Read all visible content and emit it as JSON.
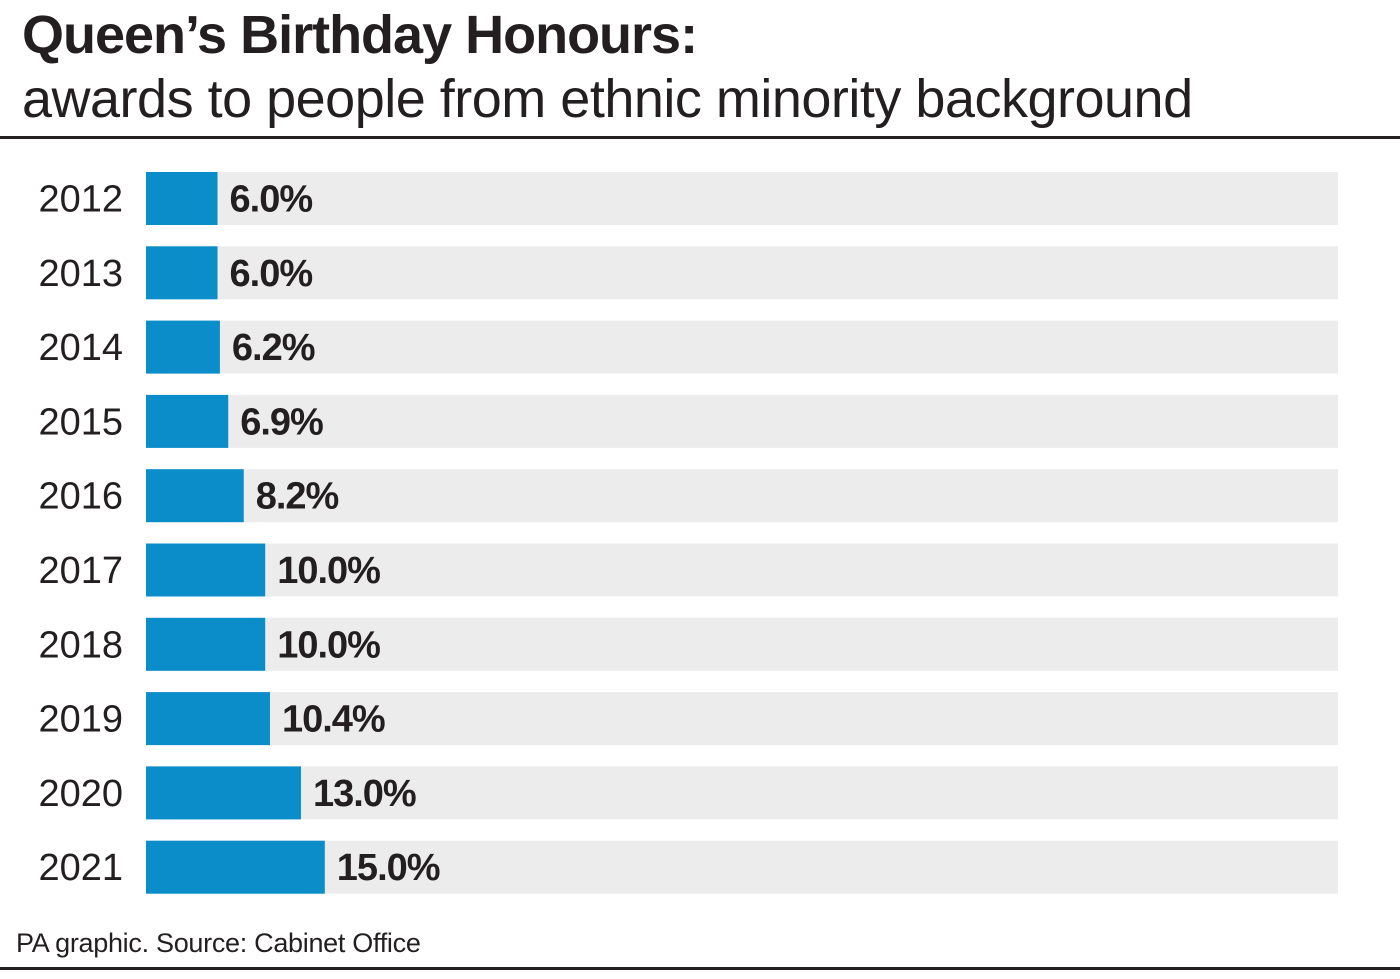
{
  "header": {
    "title": "Queen’s Birthday Honours:",
    "subtitle": "awards to people from ethnic minority background"
  },
  "footer": {
    "source": "PA graphic. Source: Cabinet Office"
  },
  "colors": {
    "bar": "#0a8dc9",
    "track": "#ececec",
    "text": "#231f20"
  },
  "chart_data": {
    "type": "bar",
    "orientation": "horizontal",
    "title": "Queen’s Birthday Honours:",
    "subtitle": "awards to people from ethnic minority background",
    "categories": [
      "2012",
      "2013",
      "2014",
      "2015",
      "2016",
      "2017",
      "2018",
      "2019",
      "2020",
      "2021"
    ],
    "values": [
      6.0,
      6.0,
      6.2,
      6.9,
      8.2,
      10.0,
      10.0,
      10.4,
      13.0,
      15.0
    ],
    "value_labels": [
      "6.0%",
      "6.0%",
      "6.2%",
      "6.9%",
      "8.2%",
      "10.0%",
      "10.0%",
      "10.4%",
      "13.0%",
      "15.0%"
    ],
    "unit": "%",
    "xlim": [
      0,
      100
    ],
    "xlabel": "",
    "ylabel": "",
    "grid": false,
    "legend": "none",
    "source": "PA graphic. Source: Cabinet Office"
  }
}
